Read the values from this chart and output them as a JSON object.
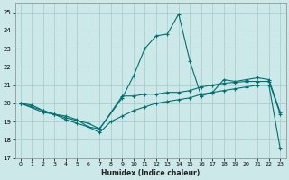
{
  "xlabel": "Humidex (Indice chaleur)",
  "background_color": "#cce8e8",
  "grid_color": "#aacece",
  "line_color": "#007070",
  "xlim": [
    -0.5,
    23.5
  ],
  "ylim": [
    17,
    25.5
  ],
  "yticks": [
    17,
    18,
    19,
    20,
    21,
    22,
    23,
    24,
    25
  ],
  "xticks": [
    0,
    1,
    2,
    3,
    4,
    5,
    6,
    7,
    8,
    9,
    10,
    11,
    12,
    13,
    14,
    15,
    16,
    17,
    18,
    19,
    20,
    21,
    22,
    23
  ],
  "series": [
    {
      "x": [
        0,
        1,
        2,
        3,
        4,
        5,
        6,
        7,
        8,
        9,
        10,
        11,
        12,
        13,
        14,
        15,
        16,
        17,
        18,
        19,
        20,
        21,
        22,
        23
      ],
      "y": [
        20.0,
        19.9,
        19.6,
        19.4,
        19.1,
        18.9,
        18.7,
        18.4,
        19.0,
        19.3,
        19.6,
        19.8,
        20.0,
        20.1,
        20.2,
        20.3,
        20.5,
        20.6,
        20.7,
        20.8,
        20.9,
        21.0,
        21.0,
        17.5
      ]
    },
    {
      "x": [
        0,
        2,
        3,
        4,
        6,
        7,
        9,
        10,
        11,
        12,
        13,
        14,
        15,
        16,
        17,
        18,
        19,
        20,
        21,
        22,
        23
      ],
      "y": [
        20.0,
        19.6,
        19.4,
        19.2,
        18.9,
        18.6,
        20.4,
        20.4,
        20.5,
        20.5,
        20.6,
        20.6,
        20.7,
        20.9,
        21.0,
        21.1,
        21.15,
        21.2,
        21.2,
        21.2,
        19.4
      ]
    },
    {
      "x": [
        0,
        2,
        3,
        4,
        5,
        6,
        7,
        9,
        10,
        11,
        12,
        13,
        14,
        15,
        16,
        17,
        18,
        19,
        20,
        21,
        22,
        23
      ],
      "y": [
        20.0,
        19.5,
        19.4,
        19.3,
        19.1,
        18.7,
        18.6,
        20.3,
        21.5,
        23.0,
        23.7,
        23.8,
        24.9,
        22.3,
        20.4,
        20.6,
        21.3,
        21.2,
        21.3,
        21.4,
        21.3,
        19.5
      ]
    }
  ]
}
